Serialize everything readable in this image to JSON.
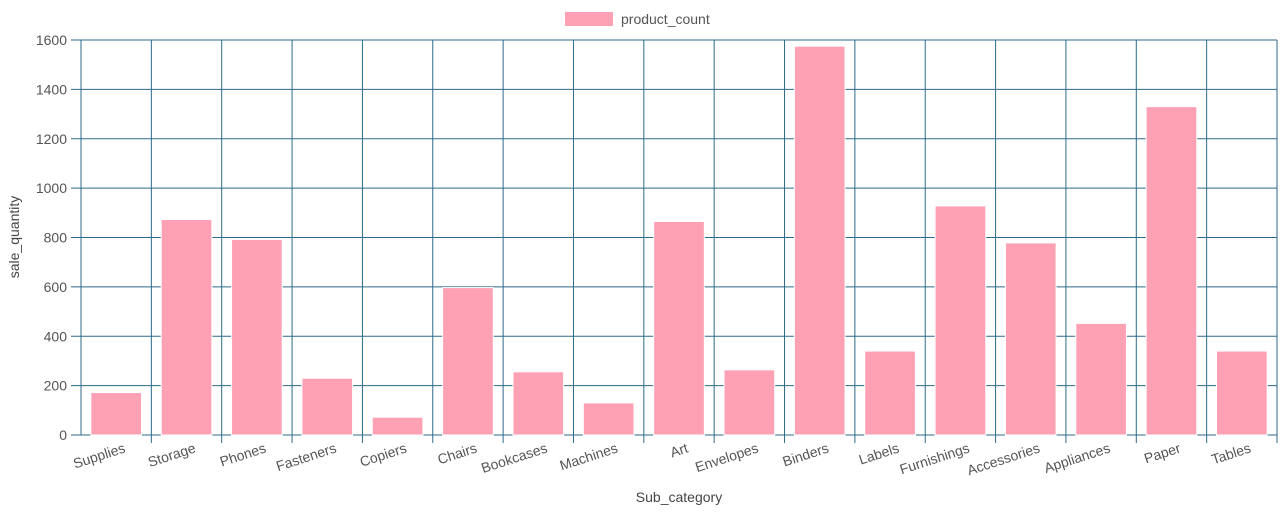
{
  "chart_data": {
    "type": "bar",
    "categories": [
      "Supplies",
      "Storage",
      "Phones",
      "Fasteners",
      "Copiers",
      "Chairs",
      "Bookcases",
      "Machines",
      "Art",
      "Envelopes",
      "Binders",
      "Labels",
      "Furnishings",
      "Accessories",
      "Appliances",
      "Paper",
      "Tables"
    ],
    "series": [
      {
        "name": "product_count",
        "values": [
          172,
          873,
          792,
          230,
          72,
          597,
          256,
          130,
          865,
          264,
          1575,
          340,
          928,
          778,
          452,
          1330,
          340
        ]
      }
    ],
    "xlabel": "Sub_category",
    "ylabel": "sale_quantity",
    "ylim": [
      0,
      1600
    ],
    "yticks": [
      0,
      200,
      400,
      600,
      800,
      1000,
      1200,
      1400,
      1600
    ],
    "grid": true,
    "legend_position": "top-center",
    "colors": {
      "bar_fill": "#ffa1b5",
      "bar_stroke": "#ffffff",
      "grid": "#2b6a8a",
      "axis": "#2b6a8a"
    }
  }
}
